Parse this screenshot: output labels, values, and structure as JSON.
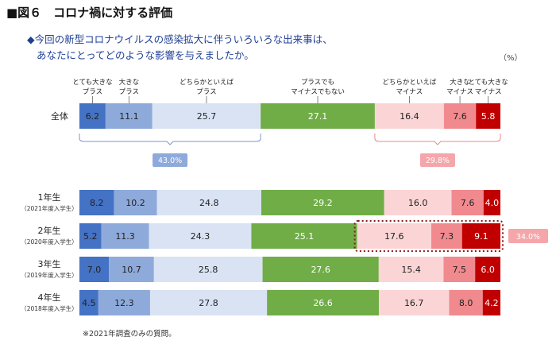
{
  "figure": {
    "title": "■図６　コロナ禍に対する評価",
    "question_line1": "◆今回の新型コロナウイルスの感染拡大に伴ういろいろな出来事は、",
    "question_line2": "あなたにとってどのような影響を与えましたか。",
    "unit": "（%）",
    "footnote": "※2021年調査のみの質問。"
  },
  "chart_data": {
    "type": "bar",
    "orientation": "horizontal-stacked-100",
    "categories_order": [
      "とても大きなプラス",
      "大きなプラス",
      "どちらかといえばプラス",
      "プラスでもマイナスでもない",
      "どちらかといえばマイナス",
      "大きなマイナス",
      "とても大きなマイナス"
    ],
    "legend": [
      {
        "line1": "とても大きな",
        "line2": "プラス"
      },
      {
        "line1": "大きな",
        "line2": "プラス"
      },
      {
        "line1": "どちらかといえば",
        "line2": "プラス"
      },
      {
        "line1": "プラスでも",
        "line2": "マイナスでもない"
      },
      {
        "line1": "どちらかといえば",
        "line2": "マイナス"
      },
      {
        "line1": "大きな",
        "line2": "マイナス"
      },
      {
        "line1": "とても大きな",
        "line2": "マイナス"
      }
    ],
    "colors": [
      "#4472c4",
      "#8eaadb",
      "#dae3f3",
      "#70ad47",
      "#fbd5d6",
      "#f08a8e",
      "#c00000"
    ],
    "rows": [
      {
        "name": "全体",
        "sub": "",
        "values": [
          6.2,
          11.1,
          25.7,
          27.1,
          16.4,
          7.6,
          5.8
        ]
      },
      {
        "name": "1年生",
        "sub": "（2021年度入学生）",
        "values": [
          8.2,
          10.2,
          24.8,
          29.2,
          16.0,
          7.6,
          4.0
        ]
      },
      {
        "name": "2年生",
        "sub": "（2020年度入学生）",
        "values": [
          5.2,
          11.3,
          24.3,
          25.1,
          17.6,
          7.3,
          9.1
        ]
      },
      {
        "name": "3年生",
        "sub": "（2019年度入学生）",
        "values": [
          7.0,
          10.7,
          25.8,
          27.6,
          15.4,
          7.5,
          6.0
        ]
      },
      {
        "name": "4年生",
        "sub": "（2018年度入学生）",
        "values": [
          4.5,
          12.3,
          27.8,
          26.6,
          16.7,
          8.0,
          4.2
        ]
      }
    ],
    "summaries": {
      "total_plus": "43.0%",
      "total_minus": "29.8%",
      "grade2_minus": "34.0%"
    },
    "summary_colors": {
      "plus": "#8eaadb",
      "minus": "#f4a6aa"
    }
  }
}
